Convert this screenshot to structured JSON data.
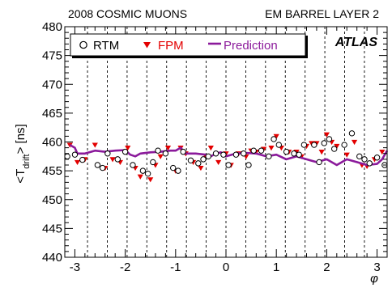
{
  "header": {
    "left_title": "2008 COSMIC MUONS",
    "right_title": "EM BARREL LAYER 2"
  },
  "chart_data": {
    "type": "scatter",
    "xlabel": "φ",
    "ylabel": "<T_drift> [ns]",
    "ylabel_main": "<T",
    "ylabel_sub": "drift",
    "ylabel_tail": "> [ns]",
    "xlim": [
      -3.2,
      3.2
    ],
    "ylim": [
      440,
      480
    ],
    "x_ticks": [
      -3,
      -2,
      -1,
      0,
      1,
      2,
      3
    ],
    "x_tick_labels": [
      "-3",
      "-2",
      "-1",
      "0",
      "1",
      "2",
      "3"
    ],
    "y_ticks": [
      440,
      445,
      450,
      455,
      460,
      465,
      470,
      475,
      480
    ],
    "y_tick_labels": [
      "440",
      "445",
      "450",
      "455",
      "460",
      "465",
      "470",
      "475",
      "480"
    ],
    "module_boundaries": [
      -2.749,
      -2.356,
      -1.963,
      -1.571,
      -1.178,
      -0.785,
      -0.393,
      0.0,
      0.393,
      0.785,
      1.178,
      1.571,
      1.963,
      2.356,
      2.749
    ],
    "legend_position": "top",
    "annotation": "ATLAS",
    "series": [
      {
        "name": "RTM",
        "marker": "open-circle",
        "color": "#000000",
        "x": [
          -3.15,
          -3.0,
          -2.85,
          -2.55,
          -2.45,
          -2.35,
          -2.15,
          -2.0,
          -1.85,
          -1.65,
          -1.55,
          -1.45,
          -1.35,
          -1.2,
          -1.05,
          -0.95,
          -0.85,
          -0.7,
          -0.55,
          -0.45,
          -0.35,
          -0.2,
          -0.05,
          0.05,
          0.2,
          0.35,
          0.45,
          0.55,
          0.7,
          0.85,
          0.95,
          1.05,
          1.2,
          1.35,
          1.45,
          1.55,
          1.75,
          1.85,
          1.95,
          2.05,
          2.15,
          2.35,
          2.5,
          2.65,
          2.75,
          2.85,
          3.0,
          3.15
        ],
        "y": [
          457.5,
          457.8,
          456.9,
          456.0,
          455.5,
          458.0,
          457.0,
          458.3,
          456.0,
          455.0,
          454.5,
          456.5,
          458.5,
          458.0,
          455.5,
          455.0,
          458.3,
          456.8,
          456.3,
          457.0,
          457.5,
          458.0,
          457.8,
          456.0,
          457.8,
          458.0,
          456.0,
          458.5,
          458.5,
          457.5,
          460.5,
          459.5,
          458.3,
          458.0,
          457.8,
          459.5,
          459.5,
          456.5,
          459.8,
          460.5,
          458.8,
          459.5,
          461.5,
          457.5,
          457.0,
          456.3,
          457.3,
          456.0
        ]
      },
      {
        "name": "FPM",
        "marker": "filled-triangle-down",
        "color": "#e30000",
        "x": [
          -3.1,
          -2.95,
          -2.8,
          -2.6,
          -2.4,
          -2.25,
          -2.1,
          -1.95,
          -1.8,
          -1.7,
          -1.5,
          -1.4,
          -1.3,
          -1.15,
          -1.0,
          -0.9,
          -0.8,
          -0.65,
          -0.5,
          -0.4,
          -0.3,
          -0.15,
          0.0,
          0.1,
          0.25,
          0.4,
          0.5,
          0.6,
          0.75,
          0.9,
          1.0,
          1.1,
          1.25,
          1.4,
          1.5,
          1.6,
          1.7,
          1.8,
          1.9,
          2.0,
          2.1,
          2.2,
          2.4,
          2.55,
          2.7,
          2.8,
          2.95,
          3.1
        ],
        "y": [
          459.5,
          456.5,
          457.0,
          459.5,
          455.5,
          457.0,
          456.5,
          459.0,
          455.5,
          454.0,
          453.5,
          456.0,
          457.5,
          459.0,
          455.0,
          459.0,
          458.0,
          456.5,
          455.5,
          457.5,
          459.0,
          456.5,
          458.0,
          456.0,
          458.0,
          457.5,
          458.5,
          458.3,
          458.8,
          459.0,
          461.0,
          459.0,
          458.3,
          458.3,
          457.5,
          459.3,
          459.8,
          459.8,
          458.3,
          461.3,
          460.0,
          459.3,
          457.8,
          460.0,
          456.0,
          455.8,
          457.0,
          458.3
        ]
      },
      {
        "name": "Prediction",
        "marker": "line",
        "color": "#8b1a9b",
        "x": [
          -3.1,
          -3.0,
          -2.95,
          -2.8,
          -2.6,
          -2.4,
          -2.2,
          -2.0,
          -1.9,
          -1.8,
          -1.7,
          -1.5,
          -1.3,
          -1.1,
          -1.0,
          -0.9,
          -0.8,
          -0.6,
          -0.4,
          -0.3,
          -0.2,
          -0.1,
          0.0,
          0.2,
          0.4,
          0.6,
          0.8,
          1.0,
          1.2,
          1.4,
          1.6,
          1.8,
          2.0,
          2.2,
          2.4,
          2.6,
          2.8,
          3.0,
          3.1,
          3.2
        ],
        "y": [
          459.5,
          459.0,
          458.0,
          458.0,
          458.5,
          458.3,
          458.5,
          458.6,
          457.8,
          457.5,
          458.0,
          458.2,
          458.3,
          458.5,
          458.5,
          459.0,
          458.0,
          458.0,
          457.8,
          457.5,
          458.0,
          458.2,
          457.5,
          458.0,
          458.1,
          458.0,
          457.5,
          457.8,
          457.0,
          457.5,
          457.0,
          456.5,
          457.0,
          456.0,
          457.0,
          456.5,
          456.0,
          456.2,
          457.0,
          458.5
        ]
      }
    ]
  }
}
